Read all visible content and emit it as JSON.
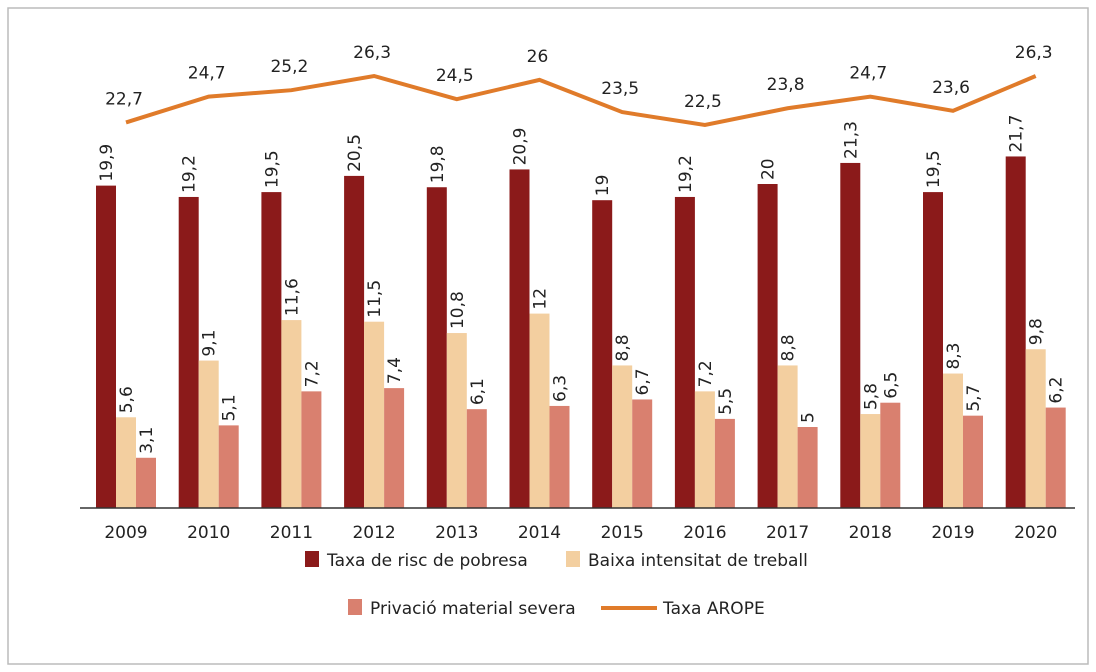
{
  "chart_data": {
    "type": "bar",
    "categories": [
      "2009",
      "2010",
      "2011",
      "2012",
      "2013",
      "2014",
      "2015",
      "2016",
      "2017",
      "2018",
      "2019",
      "2020"
    ],
    "series": [
      {
        "name": "Taxa de risc de pobresa",
        "color": "#8b1a1a",
        "type": "bar",
        "values": [
          19.9,
          19.2,
          19.5,
          20.5,
          19.8,
          20.9,
          19,
          19.2,
          20,
          21.3,
          19.5,
          21.7
        ],
        "value_labels": [
          "19,9",
          "19,2",
          "19,5",
          "20,5",
          "19,8",
          "20,9",
          "19",
          "19,2",
          "20",
          "21,3",
          "19,5",
          "21,7"
        ]
      },
      {
        "name": "Baixa intensitat de treball",
        "color": "#f3cfa0",
        "type": "bar",
        "values": [
          5.6,
          9.1,
          11.6,
          11.5,
          10.8,
          12,
          8.8,
          7.2,
          8.8,
          5.8,
          8.3,
          9.8
        ],
        "value_labels": [
          "5,6",
          "9,1",
          "11,6",
          "11,5",
          "10,8",
          "12",
          "8,8",
          "7,2",
          "8,8",
          "5,8",
          "8,3",
          "9,8"
        ]
      },
      {
        "name": "Privació material severa",
        "color": "#d9806f",
        "type": "bar",
        "values": [
          3.1,
          5.1,
          7.2,
          7.4,
          6.1,
          6.3,
          6.7,
          5.5,
          5,
          6.5,
          5.7,
          6.2
        ],
        "value_labels": [
          "3,1",
          "5,1",
          "7,2",
          "7,4",
          "6,1",
          "6,3",
          "6,7",
          "5,5",
          "5",
          "6,5",
          "5,7",
          "6,2"
        ]
      },
      {
        "name": "Taxa AROPE",
        "color": "#e07b2a",
        "type": "line",
        "values": [
          22.7,
          24.7,
          25.2,
          26.3,
          24.5,
          26,
          23.5,
          22.5,
          23.8,
          24.7,
          23.6,
          26.3
        ],
        "value_labels": [
          "22,7",
          "24,7",
          "25,2",
          "26,3",
          "24,5",
          "26",
          "23,5",
          "22,5",
          "23,8",
          "24,7",
          "23,6",
          "26,3"
        ]
      }
    ]
  }
}
